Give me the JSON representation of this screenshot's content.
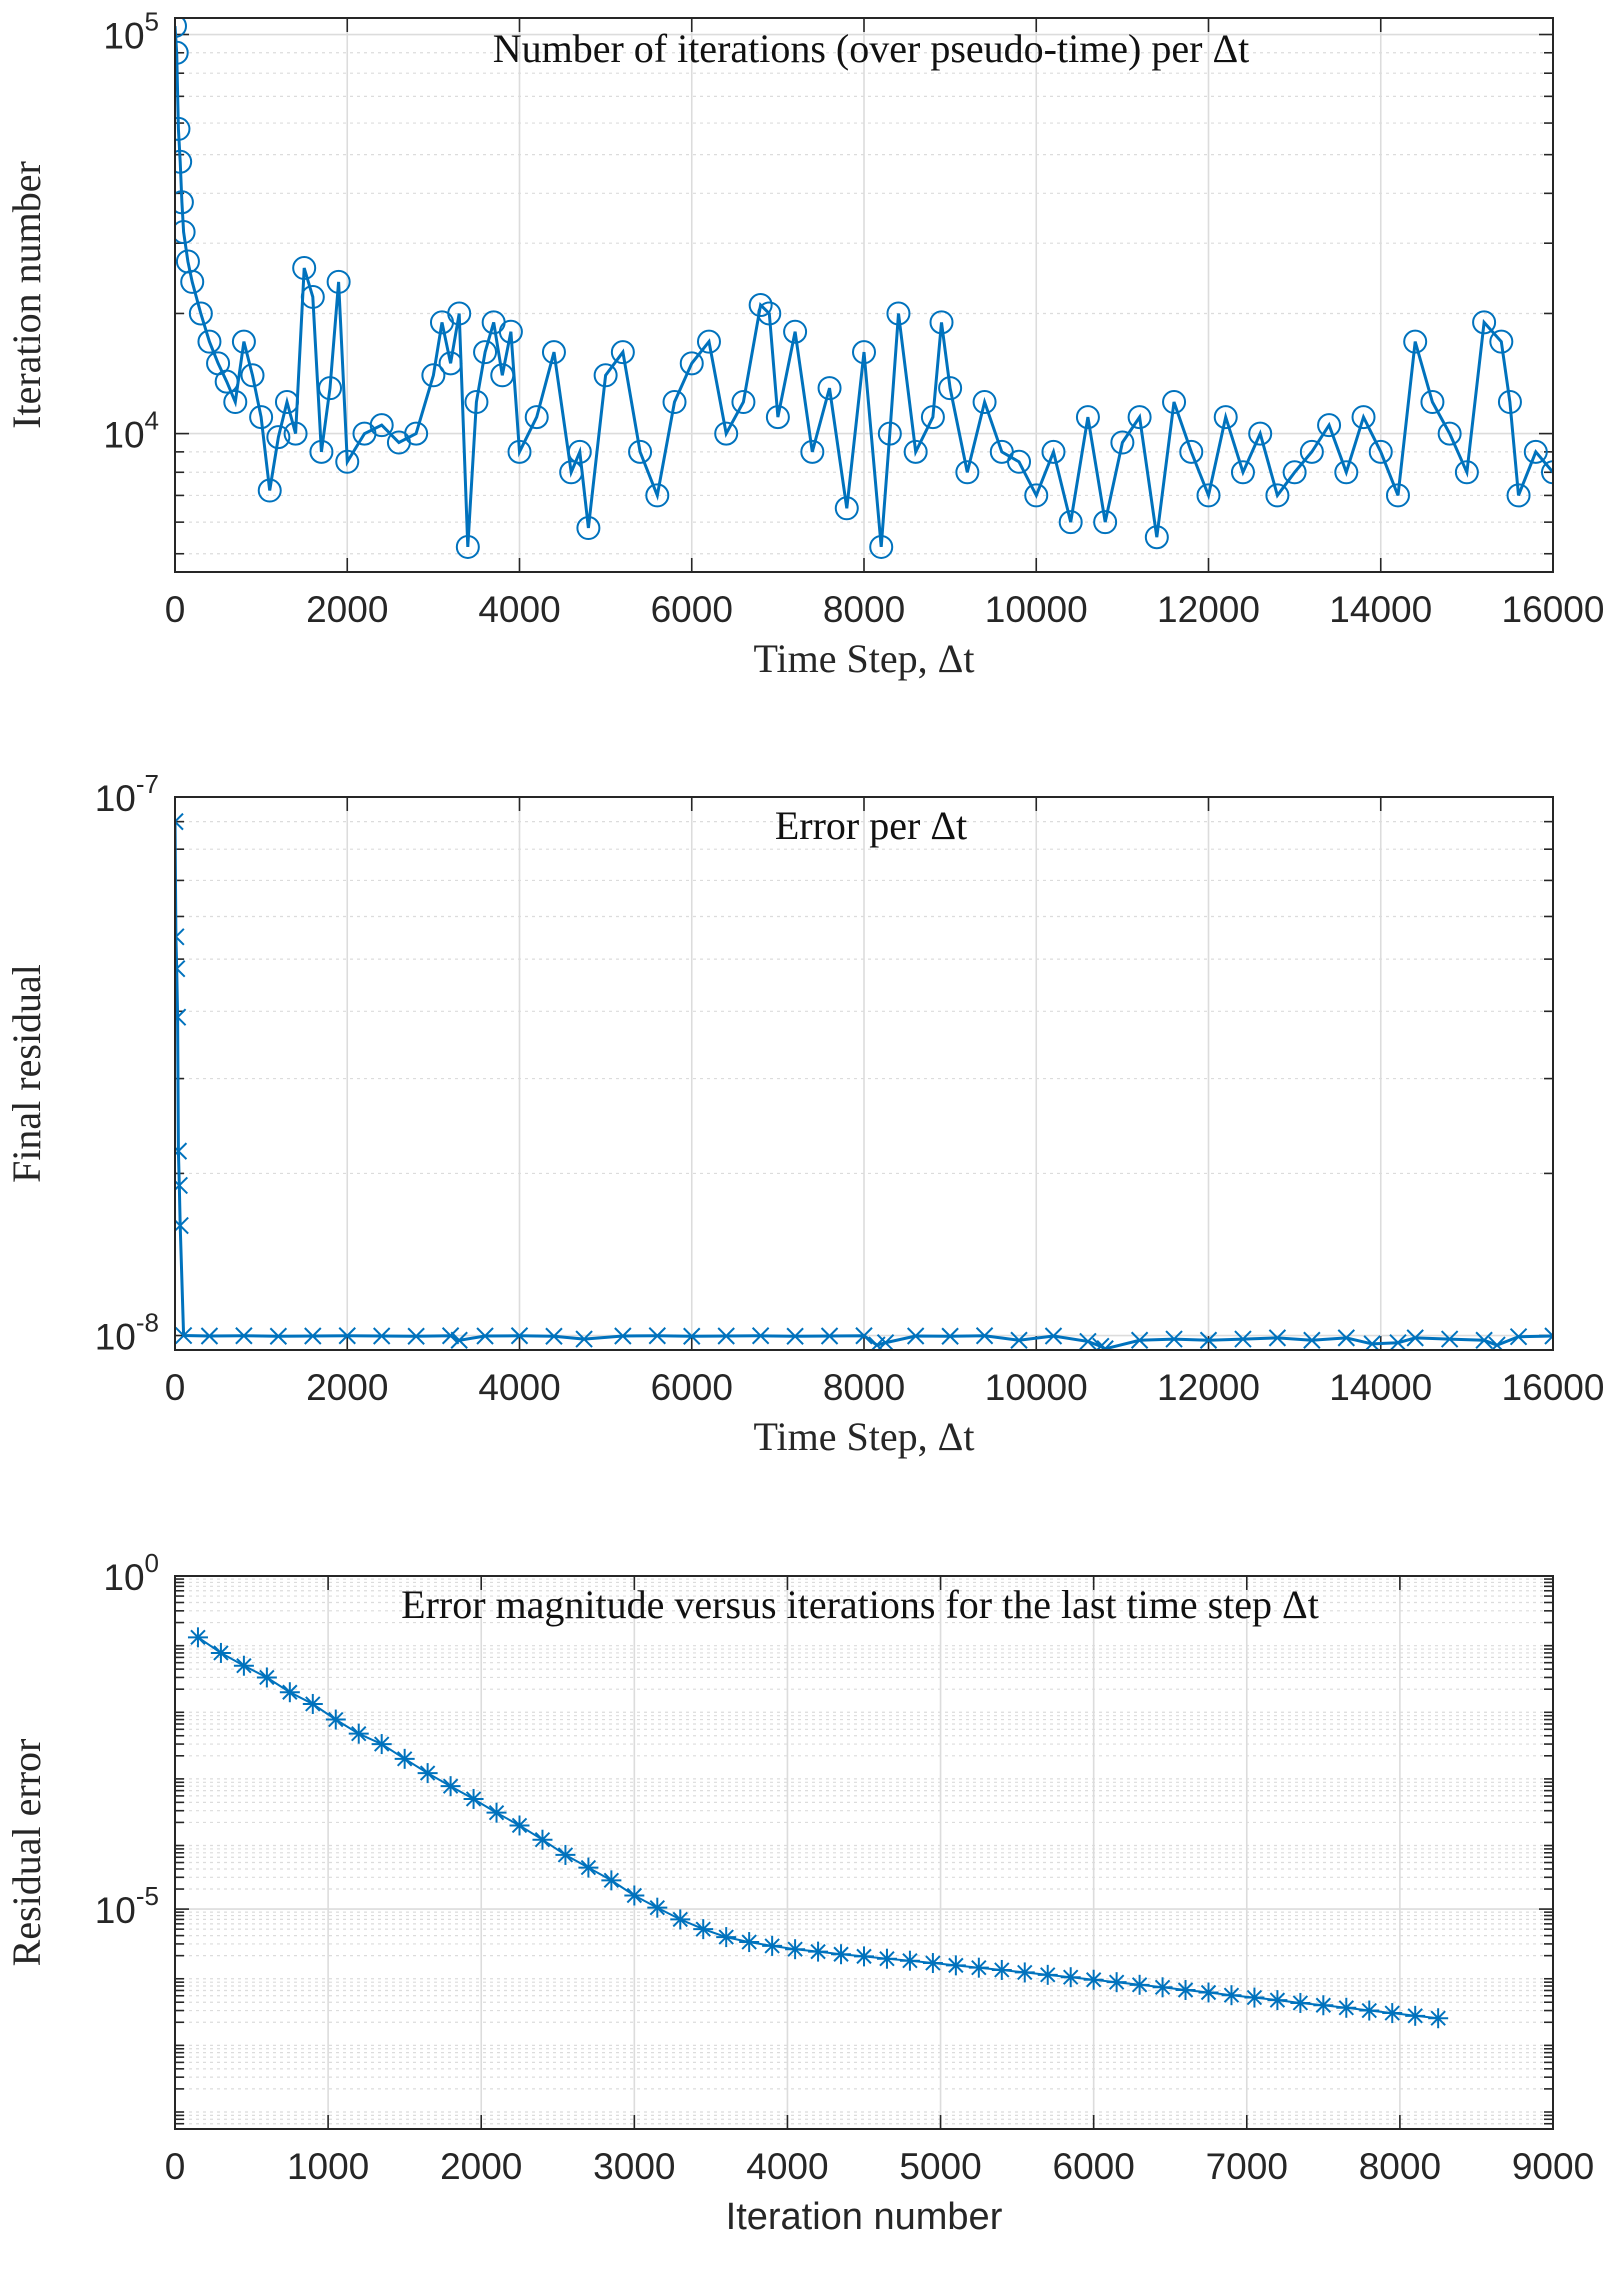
{
  "figure": {
    "accent_color": "#0072BD"
  },
  "chart_data": [
    {
      "type": "scatter",
      "marker": "circle",
      "connected": true,
      "title": "Number of iterations (over pseudo-time) per Δt",
      "xlabel": "Time Step, Δt",
      "ylabel": "Iteration number",
      "xlim": [
        0,
        16000
      ],
      "ylim": [
        4500,
        110000
      ],
      "yscale": "log",
      "grid": true,
      "x_ticks": [
        "0",
        "2000",
        "4000",
        "6000",
        "8000",
        "10000",
        "12000",
        "14000",
        "16000"
      ],
      "y_ticks": [
        {
          "value": 10000,
          "base": "10",
          "exp": "4"
        },
        {
          "value": 100000,
          "base": "10",
          "exp": "5"
        }
      ],
      "series": [
        {
          "color": "#0072BD",
          "points": [
            [
              0,
              105000
            ],
            [
              20,
              90000
            ],
            [
              40,
              58000
            ],
            [
              60,
              48000
            ],
            [
              80,
              38000
            ],
            [
              100,
              32000
            ],
            [
              150,
              27000
            ],
            [
              200,
              24000
            ],
            [
              300,
              20000
            ],
            [
              400,
              17000
            ],
            [
              500,
              15000
            ],
            [
              600,
              13500
            ],
            [
              700,
              12000
            ],
            [
              800,
              17000
            ],
            [
              900,
              14000
            ],
            [
              1000,
              11000
            ],
            [
              1100,
              7200
            ],
            [
              1200,
              9800
            ],
            [
              1300,
              12000
            ],
            [
              1400,
              10000
            ],
            [
              1500,
              26000
            ],
            [
              1600,
              22000
            ],
            [
              1700,
              9000
            ],
            [
              1800,
              13000
            ],
            [
              1900,
              24000
            ],
            [
              2000,
              8500
            ],
            [
              2200,
              10000
            ],
            [
              2400,
              10500
            ],
            [
              2600,
              9500
            ],
            [
              2800,
              10000
            ],
            [
              3000,
              14000
            ],
            [
              3100,
              19000
            ],
            [
              3200,
              15000
            ],
            [
              3300,
              20000
            ],
            [
              3400,
              5200
            ],
            [
              3500,
              12000
            ],
            [
              3600,
              16000
            ],
            [
              3700,
              19000
            ],
            [
              3800,
              14000
            ],
            [
              3900,
              18000
            ],
            [
              4000,
              9000
            ],
            [
              4200,
              11000
            ],
            [
              4400,
              16000
            ],
            [
              4600,
              8000
            ],
            [
              4700,
              9000
            ],
            [
              4800,
              5800
            ],
            [
              5000,
              14000
            ],
            [
              5200,
              16000
            ],
            [
              5400,
              9000
            ],
            [
              5600,
              7000
            ],
            [
              5800,
              12000
            ],
            [
              6000,
              15000
            ],
            [
              6200,
              17000
            ],
            [
              6400,
              10000
            ],
            [
              6600,
              12000
            ],
            [
              6800,
              21000
            ],
            [
              6900,
              20000
            ],
            [
              7000,
              11000
            ],
            [
              7200,
              18000
            ],
            [
              7400,
              9000
            ],
            [
              7600,
              13000
            ],
            [
              7800,
              6500
            ],
            [
              8000,
              16000
            ],
            [
              8200,
              5200
            ],
            [
              8300,
              10000
            ],
            [
              8400,
              20000
            ],
            [
              8600,
              9000
            ],
            [
              8800,
              11000
            ],
            [
              8900,
              19000
            ],
            [
              9000,
              13000
            ],
            [
              9200,
              8000
            ],
            [
              9400,
              12000
            ],
            [
              9600,
              9000
            ],
            [
              9800,
              8500
            ],
            [
              10000,
              7000
            ],
            [
              10200,
              9000
            ],
            [
              10400,
              6000
            ],
            [
              10600,
              11000
            ],
            [
              10800,
              6000
            ],
            [
              11000,
              9500
            ],
            [
              11200,
              11000
            ],
            [
              11400,
              5500
            ],
            [
              11600,
              12000
            ],
            [
              11800,
              9000
            ],
            [
              12000,
              7000
            ],
            [
              12200,
              11000
            ],
            [
              12400,
              8000
            ],
            [
              12600,
              10000
            ],
            [
              12800,
              7000
            ],
            [
              13000,
              8000
            ],
            [
              13200,
              9000
            ],
            [
              13400,
              10500
            ],
            [
              13600,
              8000
            ],
            [
              13800,
              11000
            ],
            [
              14000,
              9000
            ],
            [
              14200,
              7000
            ],
            [
              14400,
              17000
            ],
            [
              14600,
              12000
            ],
            [
              14800,
              10000
            ],
            [
              15000,
              8000
            ],
            [
              15200,
              19000
            ],
            [
              15400,
              17000
            ],
            [
              15500,
              12000
            ],
            [
              15600,
              7000
            ],
            [
              15800,
              9000
            ],
            [
              16000,
              8000
            ]
          ]
        }
      ]
    },
    {
      "type": "scatter",
      "marker": "x",
      "connected": true,
      "title": "Error per Δt",
      "xlabel": "Time Step, Δt",
      "ylabel": "Final residual",
      "xlim": [
        0,
        16000
      ],
      "ylim": [
        9.4e-09,
        1e-07
      ],
      "yscale": "log",
      "grid": true,
      "x_ticks": [
        "0",
        "2000",
        "4000",
        "6000",
        "8000",
        "10000",
        "12000",
        "14000",
        "16000"
      ],
      "y_ticks": [
        {
          "value": 1e-08,
          "base": "10",
          "exp": "-8"
        },
        {
          "value": 1e-07,
          "base": "10",
          "exp": "-7"
        }
      ],
      "series": [
        {
          "color": "#0072BD",
          "points": [
            [
              0,
              9e-08
            ],
            [
              10,
              5.5e-08
            ],
            [
              20,
              4.8e-08
            ],
            [
              30,
              3.9e-08
            ],
            [
              40,
              2.2e-08
            ],
            [
              50,
              1.9e-08
            ],
            [
              60,
              1.6e-08
            ],
            [
              100,
              1e-08
            ],
            [
              400,
              9.98e-09
            ],
            [
              800,
              9.99e-09
            ],
            [
              1200,
              9.97e-09
            ],
            [
              1600,
              9.98e-09
            ],
            [
              2000,
              9.99e-09
            ],
            [
              2400,
              9.98e-09
            ],
            [
              2800,
              9.97e-09
            ],
            [
              3200,
              9.99e-09
            ],
            [
              3300,
              9.8e-09
            ],
            [
              3600,
              9.98e-09
            ],
            [
              4000,
              9.99e-09
            ],
            [
              4400,
              9.97e-09
            ],
            [
              4750,
              9.85e-09
            ],
            [
              5200,
              9.98e-09
            ],
            [
              5600,
              9.99e-09
            ],
            [
              6000,
              9.97e-09
            ],
            [
              6400,
              9.98e-09
            ],
            [
              6800,
              9.99e-09
            ],
            [
              7200,
              9.97e-09
            ],
            [
              7600,
              9.98e-09
            ],
            [
              8000,
              9.99e-09
            ],
            [
              8150,
              9.6e-09
            ],
            [
              8250,
              9.7e-09
            ],
            [
              8600,
              9.98e-09
            ],
            [
              9000,
              9.97e-09
            ],
            [
              9400,
              9.99e-09
            ],
            [
              9800,
              9.8e-09
            ],
            [
              10200,
              9.98e-09
            ],
            [
              10600,
              9.75e-09
            ],
            [
              10750,
              9.55e-09
            ],
            [
              10800,
              9.45e-09
            ],
            [
              11200,
              9.8e-09
            ],
            [
              11600,
              9.85e-09
            ],
            [
              12000,
              9.8e-09
            ],
            [
              12400,
              9.85e-09
            ],
            [
              12800,
              9.9e-09
            ],
            [
              13200,
              9.8e-09
            ],
            [
              13600,
              9.9e-09
            ],
            [
              13900,
              9.65e-09
            ],
            [
              14200,
              9.7e-09
            ],
            [
              14400,
              9.9e-09
            ],
            [
              14800,
              9.85e-09
            ],
            [
              15200,
              9.8e-09
            ],
            [
              15350,
              9.6e-09
            ],
            [
              15600,
              9.95e-09
            ],
            [
              16000,
              9.98e-09
            ]
          ]
        }
      ]
    },
    {
      "type": "line",
      "marker": "asterisk",
      "title": "Error magnitude versus iterations for the last time step Δt",
      "xlabel": "Iteration number",
      "ylabel": "Residual error",
      "xlim": [
        0,
        9000
      ],
      "ylim": [
        5e-09,
        1
      ],
      "yscale": "log",
      "grid": true,
      "x_ticks": [
        "0",
        "1000",
        "2000",
        "3000",
        "4000",
        "5000",
        "6000",
        "7000",
        "8000",
        "9000"
      ],
      "y_ticks": [
        {
          "value": 1,
          "base": "10",
          "exp": "0"
        },
        {
          "value": 1e-05,
          "base": "10",
          "exp": "-5"
        }
      ],
      "series": [
        {
          "color": "#0072BD",
          "points": [
            [
              150,
              0.12
            ],
            [
              300,
              0.07
            ],
            [
              450,
              0.045
            ],
            [
              600,
              0.03
            ],
            [
              750,
              0.018
            ],
            [
              900,
              0.012
            ],
            [
              1050,
              0.007
            ],
            [
              1200,
              0.0043
            ],
            [
              1350,
              0.003
            ],
            [
              1500,
              0.0018
            ],
            [
              1650,
              0.0011
            ],
            [
              1800,
              0.0007
            ],
            [
              1950,
              0.00045
            ],
            [
              2100,
              0.00028
            ],
            [
              2250,
              0.00018
            ],
            [
              2400,
              0.00011
            ],
            [
              2550,
              6.5e-05
            ],
            [
              2700,
              4.2e-05
            ],
            [
              2850,
              2.7e-05
            ],
            [
              3000,
              1.6e-05
            ],
            [
              3150,
              1.05e-05
            ],
            [
              3300,
              7e-06
            ],
            [
              3450,
              5e-06
            ],
            [
              3600,
              3.8e-06
            ],
            [
              3750,
              3.2e-06
            ],
            [
              3900,
              2.8e-06
            ],
            [
              4050,
              2.5e-06
            ],
            [
              4200,
              2.3e-06
            ],
            [
              4350,
              2.1e-06
            ],
            [
              4500,
              1.95e-06
            ],
            [
              4650,
              1.8e-06
            ],
            [
              4800,
              1.68e-06
            ],
            [
              4950,
              1.55e-06
            ],
            [
              5100,
              1.43e-06
            ],
            [
              5250,
              1.32e-06
            ],
            [
              5400,
              1.22e-06
            ],
            [
              5550,
              1.12e-06
            ],
            [
              5700,
              1.03e-06
            ],
            [
              5850,
              9.5e-07
            ],
            [
              6000,
              8.7e-07
            ],
            [
              6150,
              8e-07
            ],
            [
              6300,
              7.3e-07
            ],
            [
              6450,
              6.7e-07
            ],
            [
              6600,
              6.1e-07
            ],
            [
              6750,
              5.6e-07
            ],
            [
              6900,
              5.1e-07
            ],
            [
              7050,
              4.7e-07
            ],
            [
              7200,
              4.3e-07
            ],
            [
              7350,
              3.9e-07
            ],
            [
              7500,
              3.6e-07
            ],
            [
              7650,
              3.3e-07
            ],
            [
              7800,
              3e-07
            ],
            [
              7950,
              2.75e-07
            ],
            [
              8100,
              2.5e-07
            ],
            [
              8250,
              2.3e-07
            ]
          ]
        }
      ]
    }
  ]
}
